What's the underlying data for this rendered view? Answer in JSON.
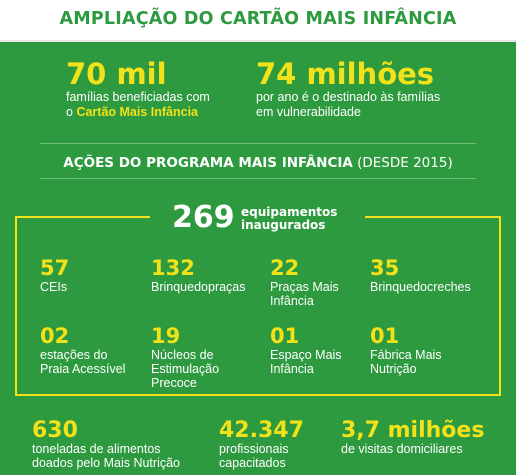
{
  "header": {
    "title": "AMPLIAÇÃO DO CARTÃO MAIS INFÂNCIA"
  },
  "highlights": [
    {
      "value": "70 mil",
      "text_line1": "famílias beneficiadas com",
      "text_prefix": "o ",
      "text_highlight": "Cartão Mais Infância"
    },
    {
      "value": "74 milhões",
      "text_line1": "por ano é o destinado às famílias",
      "text_line2": "em vulnerabilidade"
    }
  ],
  "section": {
    "title_bold": "AÇÕES DO PROGRAMA MAIS INFÂNCIA",
    "title_light": " (DESDE 2015)"
  },
  "equipment": {
    "total_value": "269",
    "total_label_line1": "equipamentos",
    "total_label_line2": "inaugurados",
    "items": [
      {
        "value": "57",
        "line1": "CEIs",
        "line2": "",
        "line3": ""
      },
      {
        "value": "132",
        "line1": "Brinquedopraças",
        "line2": "",
        "line3": ""
      },
      {
        "value": "22",
        "line1": "Praças Mais",
        "line2": "Infância",
        "line3": ""
      },
      {
        "value": "35",
        "line1": "Brinquedocreches",
        "line2": "",
        "line3": ""
      },
      {
        "value": "02",
        "line1": "estações do",
        "line2": "Praia Acessível",
        "line3": ""
      },
      {
        "value": "19",
        "line1": "Núcleos de",
        "line2": "Estimulação",
        "line3": "Precoce"
      },
      {
        "value": "01",
        "line1": "Espaço Mais",
        "line2": "Infância",
        "line3": ""
      },
      {
        "value": "01",
        "line1": "Fábrica Mais",
        "line2": "Nutrição",
        "line3": ""
      }
    ]
  },
  "bottom_stats": [
    {
      "value": "630",
      "line1": "toneladas de alimentos",
      "line2": "doados pelo Mais Nutrição"
    },
    {
      "value": "42.347",
      "line1": "profissionais",
      "line2": "capacitados"
    },
    {
      "value": "3,7 milhões",
      "line1": "de visitas domiciliares",
      "line2": ""
    }
  ],
  "colors": {
    "background": "#2e9a3f",
    "accent": "#f2e21a",
    "banner": "#ffffff",
    "text": "#ffffff"
  }
}
